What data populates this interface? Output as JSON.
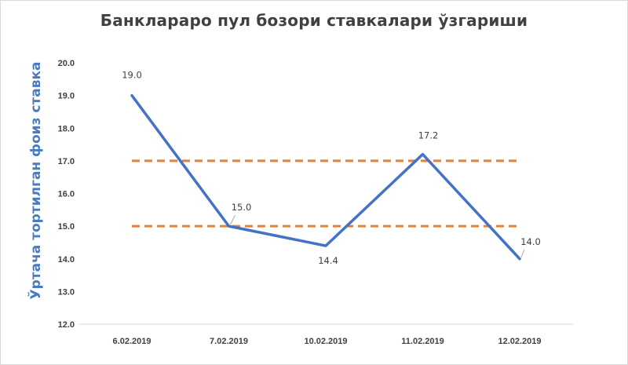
{
  "chart_data": {
    "type": "line",
    "title": "Банклараро пул бозори ставкалари ўзгариши",
    "xlabel": "",
    "ylabel": "Ўртача тортилган фоиз ставка",
    "categories": [
      "6.02.2019",
      "7.02.2019",
      "10.02.2019",
      "11.02.2019",
      "12.02.2019"
    ],
    "series": [
      {
        "values": [
          19.0,
          15.0,
          14.4,
          17.2,
          14.0
        ],
        "color": "#4472c4"
      }
    ],
    "data_labels": [
      "19.0",
      "15.0",
      "14.4",
      "17.2",
      "14.0"
    ],
    "reference_lines": [
      {
        "value": 17.0,
        "color": "#ed7d31",
        "style": "dashed"
      },
      {
        "value": 15.0,
        "color": "#ed7d31",
        "style": "dashed"
      }
    ],
    "ylim": [
      12.0,
      20.0
    ],
    "yticks": [
      "12.0",
      "13.0",
      "14.0",
      "15.0",
      "16.0",
      "17.0",
      "18.0",
      "19.0",
      "20.0"
    ],
    "grid": false,
    "legend": "none"
  }
}
